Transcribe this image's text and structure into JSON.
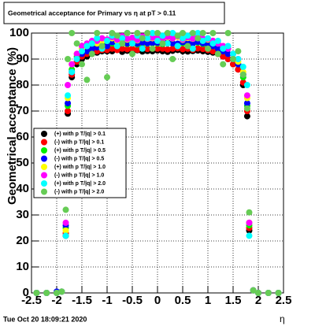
{
  "chart_data": {
    "type": "scatter",
    "title": "Geometrical acceptance for Primary vs   η at pT > 0.11",
    "y_label": "Geometrical acceptance (%)",
    "x_label": "η",
    "footer": "Tue Oct 20 18:09:21 2020",
    "xlim": [
      -2.5,
      2.5
    ],
    "ylim": [
      0,
      100
    ],
    "xticks": [
      -2.5,
      -2,
      -1.5,
      -1,
      -0.5,
      0,
      0.5,
      1,
      1.5,
      2,
      2.5
    ],
    "yticks": [
      0,
      10,
      20,
      30,
      40,
      50,
      60,
      70,
      80,
      90,
      100
    ],
    "grid": true,
    "legend": "left",
    "x": [
      -2.4,
      -2.2,
      -2.0,
      -1.9,
      -1.82,
      -1.78,
      -1.7,
      -1.6,
      -1.5,
      -1.4,
      -1.3,
      -1.2,
      -1.1,
      -1.0,
      -0.9,
      -0.8,
      -0.7,
      -0.6,
      -0.5,
      -0.4,
      -0.3,
      -0.2,
      -0.1,
      0,
      0.1,
      0.2,
      0.3,
      0.4,
      0.5,
      0.6,
      0.7,
      0.8,
      0.9,
      1.0,
      1.1,
      1.2,
      1.3,
      1.4,
      1.5,
      1.6,
      1.7,
      1.78,
      1.82,
      1.9,
      2.0,
      2.2,
      2.4
    ],
    "series": [
      {
        "name": "(+) with p T/|q| > 0.1",
        "color": "#000000",
        "values": [
          0,
          0,
          0,
          0.5,
          22,
          69,
          83,
          88,
          90,
          91,
          92,
          92.5,
          93,
          93,
          93,
          93.5,
          92.8,
          93.2,
          93,
          93.4,
          92.9,
          93.1,
          93,
          93.3,
          93,
          92.8,
          93.2,
          93.5,
          93,
          92.9,
          93.1,
          93.3,
          93,
          92.8,
          92.5,
          92,
          91,
          90,
          88,
          86,
          80,
          68,
          24,
          1,
          0,
          0,
          0
        ]
      },
      {
        "name": "(-) with p T/|q| > 0.1",
        "color": "#ff0000",
        "values": [
          0,
          0,
          0,
          0.5,
          23,
          70,
          84,
          89,
          91,
          92,
          93,
          93,
          93.5,
          93.5,
          94,
          93.5,
          94,
          93.8,
          94,
          93.6,
          94.2,
          93.9,
          94,
          94,
          94,
          93.7,
          94,
          94.2,
          93.8,
          94,
          93.6,
          94.1,
          93.9,
          93.5,
          93,
          92,
          91,
          90,
          88,
          86,
          81,
          70,
          25,
          1,
          0,
          0,
          0
        ]
      },
      {
        "name": "(+) with p T/|q| > 0.5",
        "color": "#00ee00",
        "values": [
          0,
          0,
          0,
          0.5,
          25,
          72,
          86,
          91,
          93,
          94,
          95,
          95,
          95.5,
          95,
          96,
          95.5,
          96,
          95.8,
          96.2,
          95.6,
          96,
          95.9,
          96.1,
          96,
          95.8,
          96.2,
          96,
          95.7,
          96.1,
          96,
          95.9,
          96.3,
          95.8,
          95.5,
          95,
          94,
          93,
          92,
          90,
          88,
          83,
          72,
          26,
          1,
          0,
          0,
          0
        ]
      },
      {
        "name": "(-) with p T/|q| > 0.5",
        "color": "#0000ff",
        "values": [
          0,
          0,
          0.5,
          0.5,
          26,
          73,
          85,
          90,
          92,
          93,
          94,
          94.5,
          95,
          95,
          96.5,
          95.8,
          96.3,
          96,
          96.6,
          95.9,
          96.4,
          96.1,
          96.2,
          96.3,
          96,
          96.4,
          96.1,
          95.9,
          96.5,
          96.2,
          96,
          96.6,
          96.1,
          95.8,
          95,
          94,
          93,
          92,
          90,
          88,
          84,
          73,
          27,
          1,
          0,
          0,
          0
        ]
      },
      {
        "name": "(+) with p T/|q| > 1.0",
        "color": "#ffff00",
        "values": [
          0,
          0,
          0,
          0.5,
          24,
          75,
          88,
          92,
          94,
          95,
          96,
          96,
          97,
          97,
          98,
          97,
          98.5,
          97.5,
          98,
          97.2,
          98.4,
          97.8,
          98,
          98.2,
          97.6,
          98.3,
          97.9,
          98.5,
          97.4,
          98.1,
          97.8,
          98.6,
          97.7,
          97.5,
          97,
          96,
          95,
          94,
          92,
          89,
          85,
          75,
          27,
          1,
          0,
          0,
          0
        ]
      },
      {
        "name": "(-) with p T/|q| > 1.0",
        "color": "#ff00ff",
        "values": [
          0,
          0,
          0,
          0.5,
          27,
          80,
          88,
          92,
          95,
          96,
          97,
          97,
          98,
          97.5,
          98.5,
          97.5,
          98.8,
          97.8,
          98.2,
          97.4,
          98.7,
          97.9,
          98.3,
          98.1,
          97.8,
          98.6,
          98,
          98.8,
          97.6,
          98.4,
          97.9,
          98.9,
          97.9,
          97.8,
          97,
          96,
          95,
          94,
          92,
          90,
          84,
          76,
          27,
          1,
          0,
          0,
          0
        ]
      },
      {
        "name": "(+) with p T/|q| > 2.0",
        "color": "#00ffff",
        "values": [
          0,
          0,
          0,
          0.5,
          22,
          76,
          85,
          90,
          93,
          95,
          96,
          98,
          94,
          97,
          99,
          95,
          98,
          100,
          96,
          99,
          94,
          98,
          100,
          97,
          99,
          96,
          100,
          95,
          98,
          99,
          94,
          100,
          97,
          98,
          96,
          97,
          94,
          95,
          92,
          90,
          87,
          80,
          22,
          1,
          0,
          0,
          0
        ]
      },
      {
        "name": "(-) with p T/|q| > 2.0",
        "color": "#66cc55",
        "values": [
          0,
          0,
          0,
          0.5,
          32,
          90,
          100,
          96,
          88,
          82,
          92,
          100,
          95,
          83,
          100,
          99,
          96,
          100,
          92,
          100,
          98,
          100,
          94,
          100,
          96,
          100,
          90,
          99,
          100,
          95,
          100,
          98,
          100,
          94,
          100,
          92,
          88,
          100,
          90,
          93,
          84,
          71,
          31,
          1,
          0,
          0,
          0
        ]
      }
    ]
  }
}
